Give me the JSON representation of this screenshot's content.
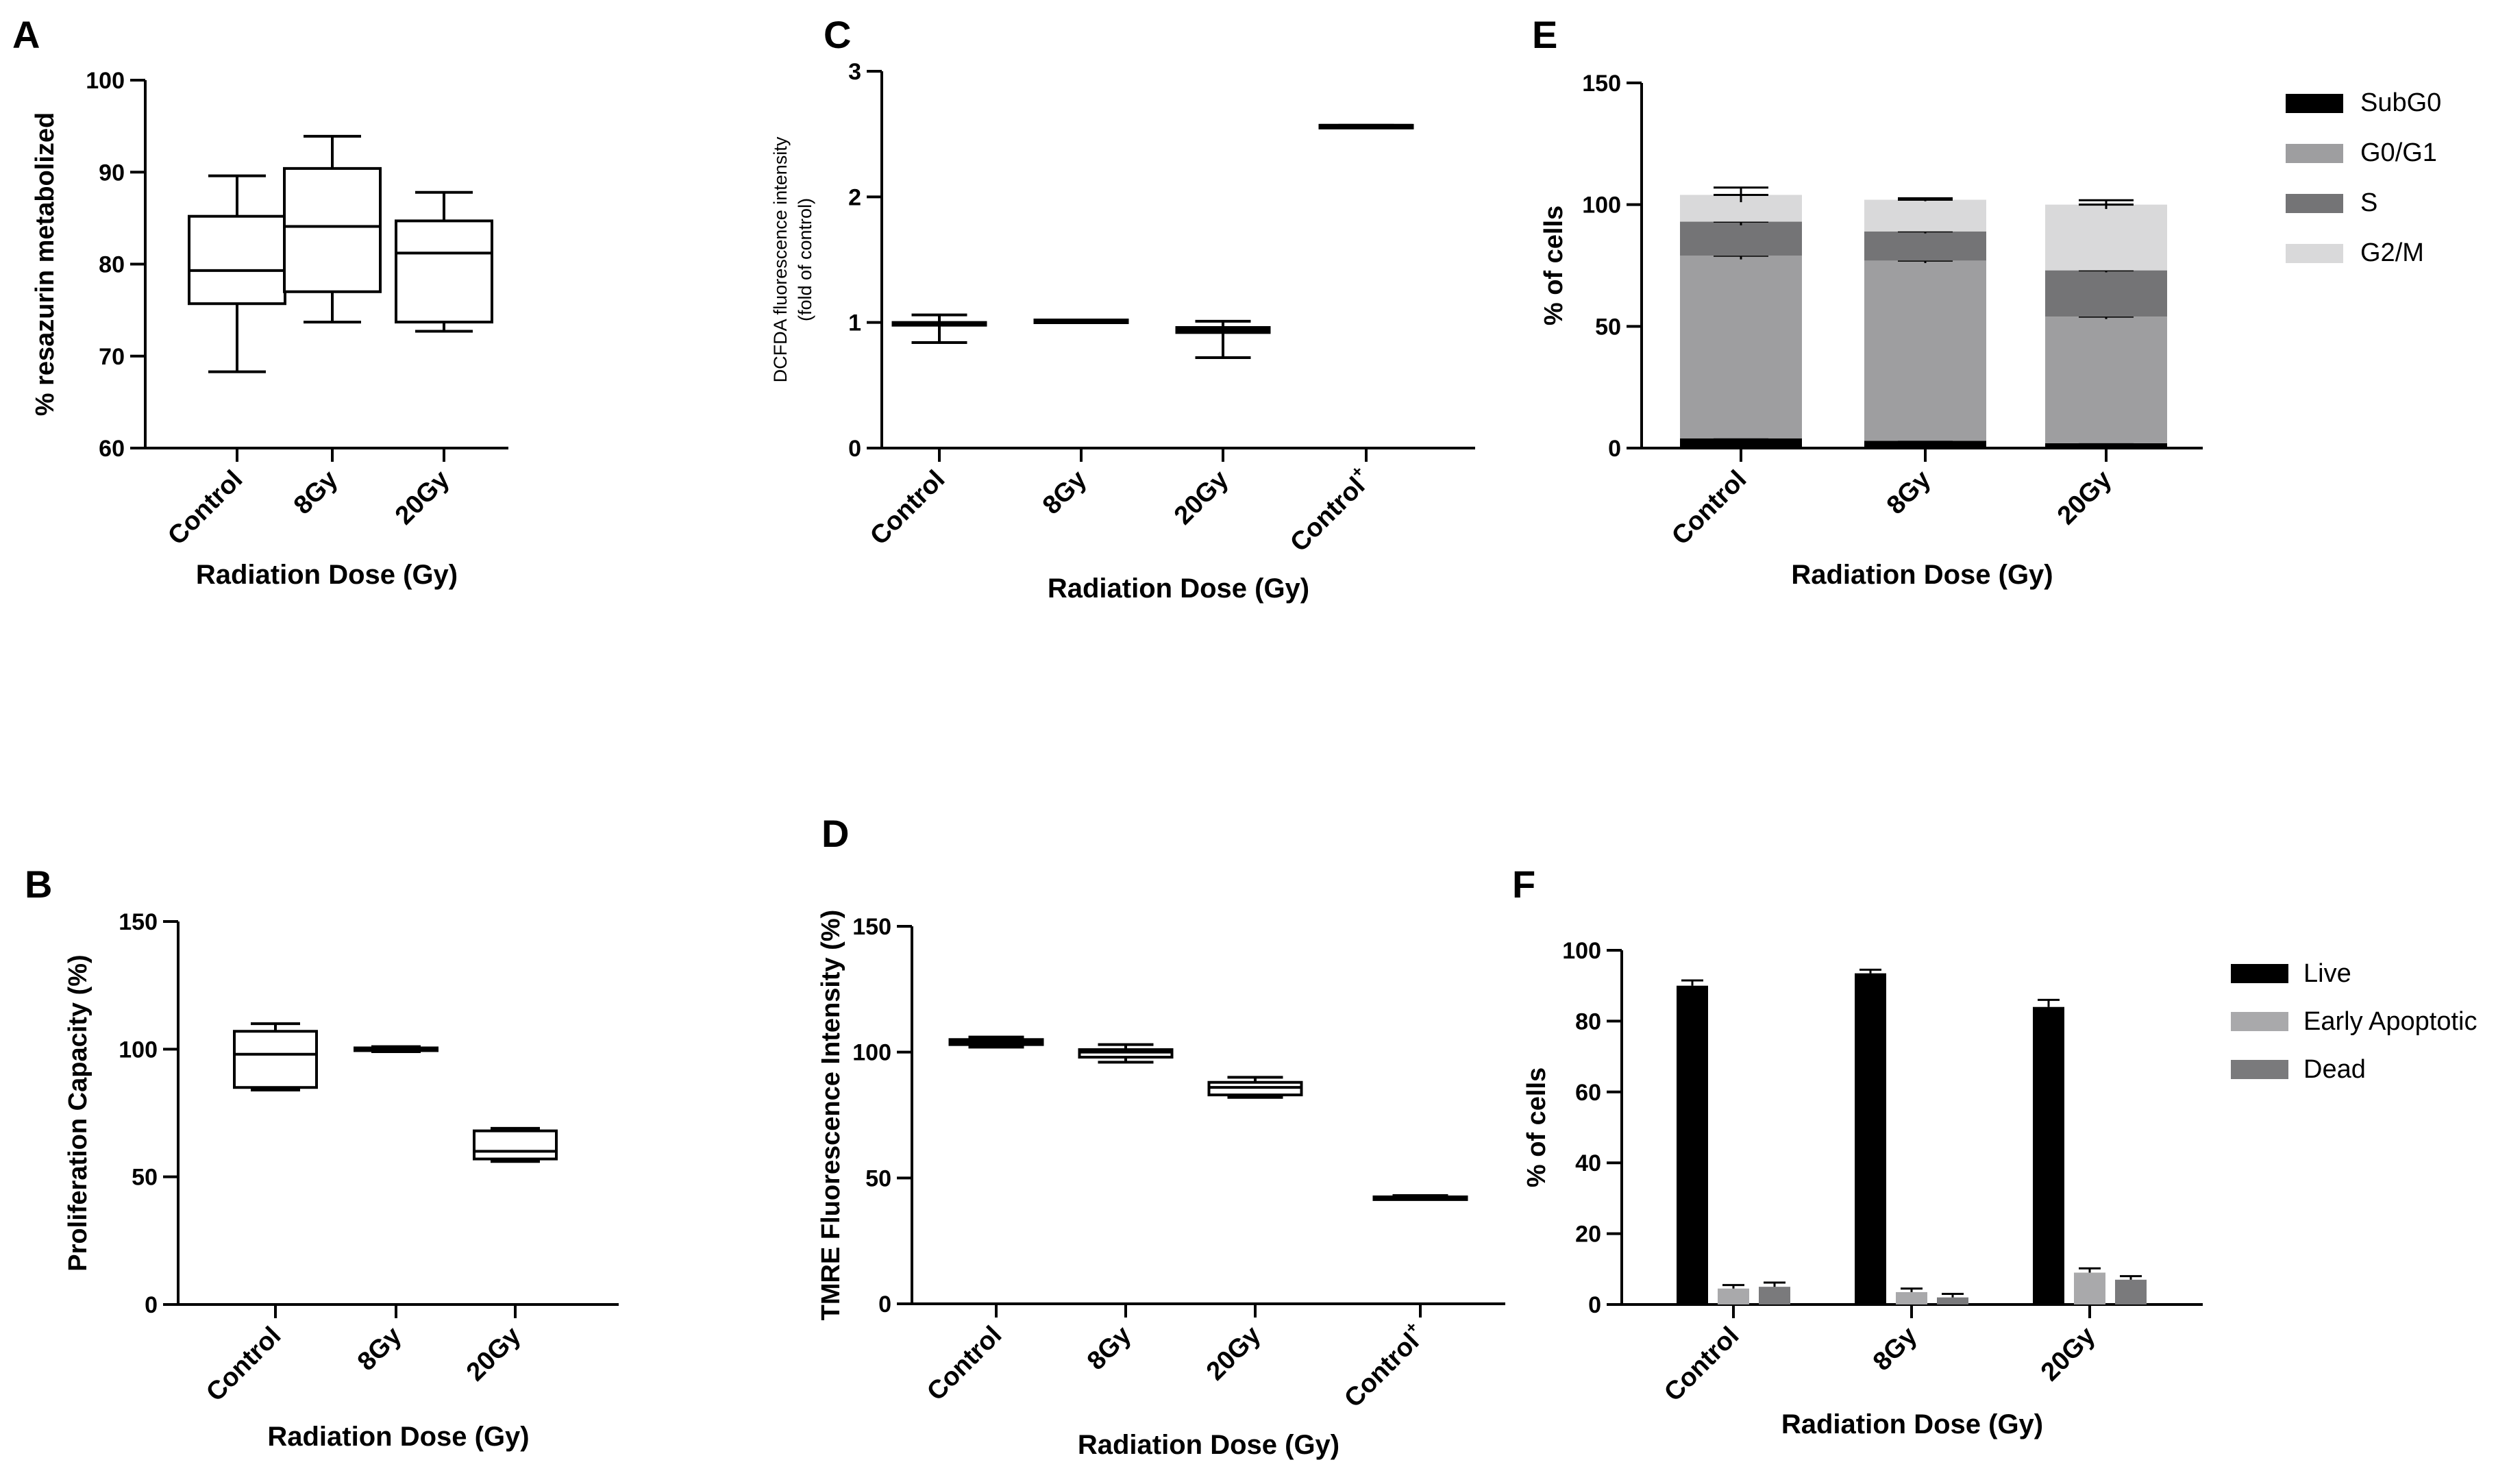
{
  "chart_data": [
    {
      "panel": "A",
      "type": "box",
      "ylabel": "% resazurin metabolized",
      "xlabel": "Radiation  Dose (Gy)",
      "ylim": [
        60,
        100
      ],
      "yticks": [
        "60",
        "70",
        "80",
        "90",
        "100"
      ],
      "categories": [
        "Control",
        "8Gy",
        "20Gy"
      ],
      "boxes": [
        {
          "min": 68.3,
          "q1": 75.7,
          "median": 79.3,
          "q3": 85.2,
          "max": 89.6
        },
        {
          "min": 73.7,
          "q1": 77.0,
          "median": 84.1,
          "q3": 90.4,
          "max": 93.9
        },
        {
          "min": 72.7,
          "q1": 73.7,
          "median": 81.2,
          "q3": 84.7,
          "max": 87.8
        }
      ]
    },
    {
      "panel": "B",
      "type": "box",
      "ylabel": "Proliferation Capacity (%)",
      "xlabel": "Radiation  Dose (Gy)",
      "ylim": [
        0,
        150
      ],
      "yticks": [
        "0",
        "50",
        "100",
        "150"
      ],
      "categories": [
        "Control",
        "8Gy",
        "20Gy"
      ],
      "boxes": [
        {
          "min": 84,
          "q1": 85,
          "median": 98,
          "q3": 107,
          "max": 110
        },
        {
          "min": 99,
          "q1": 99.5,
          "median": 100,
          "q3": 100.5,
          "max": 101
        },
        {
          "min": 56,
          "q1": 57,
          "median": 60,
          "q3": 68,
          "max": 69
        }
      ]
    },
    {
      "panel": "C",
      "type": "box",
      "ylabel_line1": "DCFDA fluorescence intensity",
      "ylabel_line2": "(fold of control)",
      "xlabel": "Radiation  Dose (Gy)",
      "ylim": [
        0,
        3
      ],
      "yticks": [
        "0",
        "1",
        "2",
        "3"
      ],
      "categories": [
        "Control",
        "8Gy",
        "20Gy",
        "Control"
      ],
      "category_superscript": "+",
      "boxes": [
        {
          "min": 0.84,
          "q1": 0.98,
          "median": 0.99,
          "q3": 1.0,
          "max": 1.06
        },
        {
          "min": 1.0,
          "q1": 1.0,
          "median": 1.01,
          "q3": 1.02,
          "max": 1.02
        },
        {
          "min": 0.72,
          "q1": 0.92,
          "median": 0.94,
          "q3": 0.96,
          "max": 1.01
        },
        {
          "min": 2.56,
          "q1": 2.56,
          "median": 2.57,
          "q3": 2.57,
          "max": 2.57
        }
      ]
    },
    {
      "panel": "D",
      "type": "box",
      "ylabel": "TMRE Fluorescence Intensity (%)",
      "xlabel": "Radiation  Dose (Gy)",
      "ylim": [
        0,
        150
      ],
      "yticks": [
        "0",
        "50",
        "100",
        "150"
      ],
      "categories": [
        "Control",
        "8Gy",
        "20Gy",
        "Control"
      ],
      "category_superscript": "+",
      "boxes": [
        {
          "min": 102,
          "q1": 103,
          "median": 104,
          "q3": 105,
          "max": 106
        },
        {
          "min": 96,
          "q1": 98,
          "median": 100,
          "q3": 101,
          "max": 103
        },
        {
          "min": 82,
          "q1": 83,
          "median": 86,
          "q3": 88,
          "max": 90
        },
        {
          "min": 41.5,
          "q1": 42,
          "median": 42,
          "q3": 42.5,
          "max": 43
        }
      ]
    },
    {
      "panel": "E",
      "type": "stacked-bar",
      "ylabel": "% of cells",
      "xlabel": "Radiation  Dose (Gy)",
      "ylim": [
        0,
        150
      ],
      "yticks": [
        "0",
        "50",
        "100",
        "150"
      ],
      "categories": [
        "Control",
        "8Gy",
        "20Gy"
      ],
      "series": [
        {
          "name": "SubG0",
          "color": "#000000",
          "values": [
            4,
            3,
            2
          ],
          "errors": [
            1.5,
            0.8,
            1.0
          ]
        },
        {
          "name": "G0/G1",
          "color": "#9e9ea0",
          "values": [
            75,
            74,
            52
          ],
          "errors": [
            1.5,
            1.0,
            1.0
          ]
        },
        {
          "name": "S",
          "color": "#747476",
          "values": [
            14,
            12,
            19
          ],
          "errors": [
            1.5,
            0.8,
            0.8
          ]
        },
        {
          "name": "G2/M",
          "color": "#d9d9da",
          "values": [
            11,
            13,
            27
          ],
          "errors": [
            3.0,
            0.6,
            1.8
          ]
        }
      ],
      "legend_position": "right"
    },
    {
      "panel": "F",
      "type": "bar",
      "ylabel": "% of cells",
      "xlabel": "Radiation  Dose (Gy)",
      "ylim": [
        0,
        100
      ],
      "yticks": [
        "0",
        "20",
        "40",
        "60",
        "80",
        "100"
      ],
      "categories": [
        "Control",
        "8Gy",
        "20Gy"
      ],
      "series": [
        {
          "name": "Live",
          "color": "#000000",
          "values": [
            90,
            93.5,
            84
          ],
          "errors": [
            1.5,
            1.0,
            2.0
          ]
        },
        {
          "name": "Early Apoptotic",
          "color": "#a9a9ab",
          "values": [
            4.5,
            3.5,
            9
          ],
          "errors": [
            1.0,
            1.0,
            1.2
          ]
        },
        {
          "name": "Dead",
          "color": "#7a7a7c",
          "values": [
            5,
            2,
            7
          ],
          "errors": [
            1.2,
            1.0,
            1.0
          ]
        }
      ],
      "legend_position": "right"
    }
  ]
}
